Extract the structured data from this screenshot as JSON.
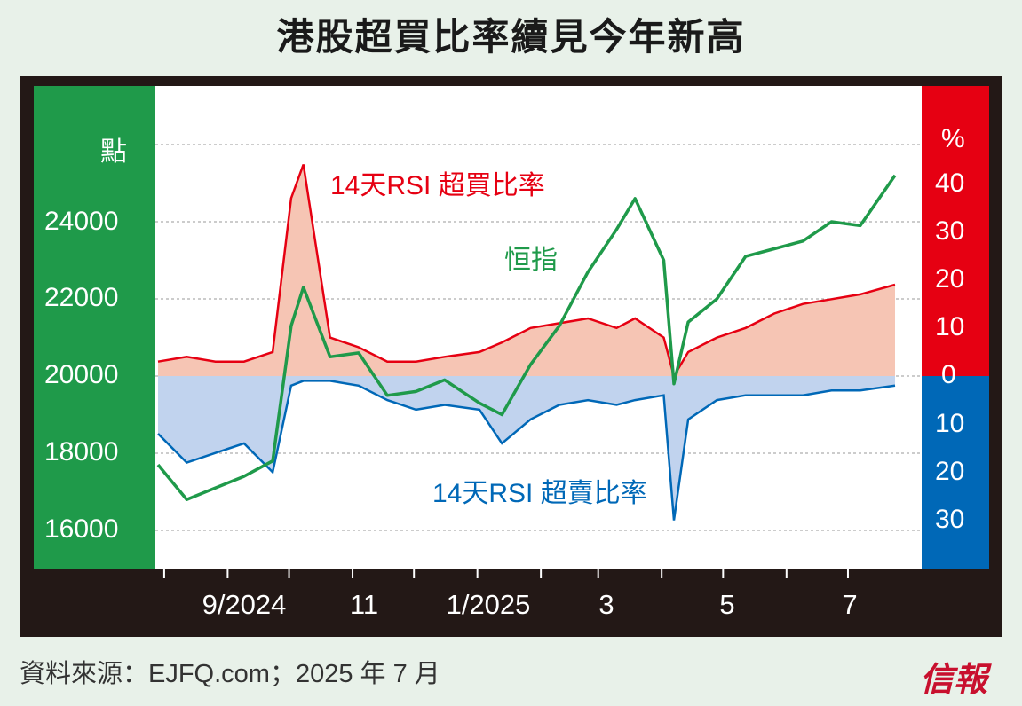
{
  "title": "港股超買比率續見今年新高",
  "source": "資料來源：EJFQ.com；2025 年 7 月",
  "logo": "信報",
  "colors": {
    "green": "#1f9a4a",
    "red": "#e60012",
    "blue": "#0068b7",
    "red_fill": "#f6c5b4",
    "blue_fill": "#c1d3ee",
    "hsi_line": "#1f9a4a",
    "frame": "#231816"
  },
  "chart_data": {
    "type": "line",
    "left_axis": {
      "unit_label": "點",
      "ticks": [
        "16000",
        "18000",
        "20000",
        "22000",
        "24000"
      ],
      "range": [
        15000,
        27500
      ]
    },
    "right_axis_top": {
      "unit_label": "%",
      "ticks": [
        "0",
        "10",
        "20",
        "30",
        "40"
      ]
    },
    "right_axis_bottom": {
      "ticks": [
        "10",
        "20",
        "30"
      ]
    },
    "x_ticks": [
      "9/2024",
      "11",
      "1/2025",
      "3",
      "5",
      "7"
    ],
    "annotations": {
      "overbought": "14天RSI 超買比率",
      "hsi": "恒指",
      "oversold": "14天RSI 超賣比率"
    },
    "x": [
      "2024-07-29",
      "2024-08-12",
      "2024-08-26",
      "2024-09-09",
      "2024-09-23",
      "2024-10-02",
      "2024-10-08",
      "2024-10-21",
      "2024-11-04",
      "2024-11-18",
      "2024-12-02",
      "2024-12-16",
      "2025-01-02",
      "2025-01-13",
      "2025-01-27",
      "2025-02-10",
      "2025-02-24",
      "2025-03-10",
      "2025-03-19",
      "2025-04-02",
      "2025-04-07",
      "2025-04-14",
      "2025-04-28",
      "2025-05-12",
      "2025-05-26",
      "2025-06-09",
      "2025-06-23",
      "2025-07-07",
      "2025-07-24"
    ],
    "series": [
      {
        "name": "恒指",
        "values": [
          17700,
          16800,
          17100,
          17400,
          17800,
          21300,
          22300,
          20500,
          20600,
          19500,
          19600,
          19900,
          19300,
          19000,
          20300,
          21300,
          22700,
          23800,
          24600,
          23000,
          19800,
          21400,
          22000,
          23100,
          23300,
          23500,
          24000,
          23900,
          25200
        ]
      },
      {
        "name": "14天RSI 超買比率",
        "unit": "%",
        "values": [
          3,
          4,
          3,
          3,
          5,
          37,
          44,
          8,
          6,
          3,
          3,
          4,
          5,
          7,
          10,
          11,
          12,
          10,
          12,
          8,
          0,
          5,
          8,
          10,
          13,
          15,
          16,
          17,
          19
        ]
      },
      {
        "name": "14天RSI 超賣比率",
        "unit": "%",
        "values": [
          12,
          18,
          16,
          14,
          20,
          2,
          1,
          1,
          2,
          5,
          7,
          6,
          7,
          14,
          9,
          6,
          5,
          6,
          5,
          4,
          30,
          9,
          5,
          4,
          4,
          4,
          3,
          3,
          2
        ]
      }
    ]
  }
}
